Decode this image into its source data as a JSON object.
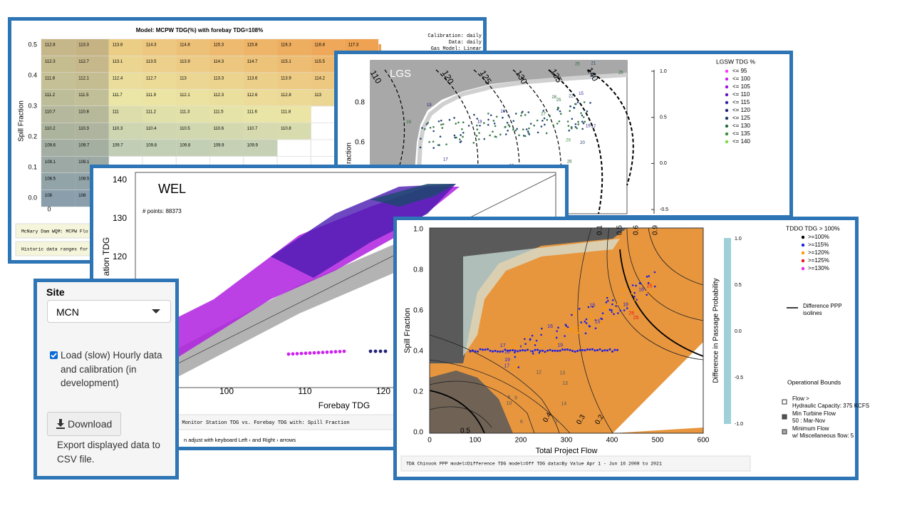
{
  "heatmap_panel": {
    "title": "Model: MCPW TDG(%) with forebay TDG=108%",
    "notes": [
      "Calibration: daily",
      "Data: daily",
      "Gas Model: Linear"
    ],
    "y_axis_label": "Spill Fraction",
    "yticks": [
      "0.5",
      "0.4",
      "0.3",
      "0.2",
      "0.1",
      "0.0"
    ],
    "xticks": [
      "0"
    ],
    "cells": [
      [
        112.8,
        113.3,
        113.8,
        114.3,
        114.8,
        115.3,
        115.8,
        116.3,
        116.8,
        117.3
      ],
      [
        112.3,
        112.7,
        113.1,
        113.5,
        113.9,
        114.3,
        114.7,
        115.1,
        115.5
      ],
      [
        111.8,
        112.1,
        112.4,
        112.7,
        113,
        113.3,
        113.6,
        113.9,
        114.2
      ],
      [
        111.2,
        111.5,
        111.7,
        111.9,
        112.1,
        112.3,
        112.6,
        112.8,
        113
      ],
      [
        110.7,
        110.8,
        111,
        111.2,
        111.3,
        111.5,
        111.6,
        111.8
      ],
      [
        110.2,
        110.3,
        110.3,
        110.4,
        110.5,
        110.6,
        110.7,
        110.8
      ],
      [
        109.6,
        109.7,
        109.7,
        109.8,
        109.8,
        109.9,
        109.9
      ],
      [
        109.1,
        109.1
      ],
      [
        108.5,
        108.5
      ],
      [
        108,
        108
      ]
    ],
    "footer": [
      "McNary Dam  WQM: MCPW  Flo",
      "Historic data ranges for cli"
    ]
  },
  "lgs_panel": {
    "label": "LGS",
    "contours": [
      "110",
      "120",
      "125",
      "130",
      "135",
      "140"
    ],
    "y_axis_label": "raction",
    "yticks": [
      "0.8",
      "0.6"
    ],
    "colorbar_ticks": [
      "1.0",
      "0.5",
      "0.0",
      "-0.5"
    ],
    "legend_title": "LGSW TDG %",
    "legend": [
      {
        "label": "<= 95",
        "color": "#ff33ff"
      },
      {
        "label": "<= 100",
        "color": "#cc22ee"
      },
      {
        "label": "<= 105",
        "color": "#9911dd"
      },
      {
        "label": "<= 110",
        "color": "#6611bb"
      },
      {
        "label": "<= 115",
        "color": "#3322aa"
      },
      {
        "label": "<= 120",
        "color": "#222277"
      },
      {
        "label": "<= 125",
        "color": "#1c3c66"
      },
      {
        "label": "<= 130",
        "color": "#2a6a3a"
      },
      {
        "label": "<= 135",
        "color": "#3c8c3c"
      },
      {
        "label": "<= 140",
        "color": "#77dd44"
      }
    ],
    "point_labels": [
      {
        "label": "18",
        "color": "#222277"
      },
      {
        "label": "17",
        "color": "#222277"
      },
      {
        "label": "19",
        "color": "#222277"
      },
      {
        "label": "20",
        "color": "#1c3c66"
      },
      {
        "label": "21",
        "color": "#1c3c66"
      },
      {
        "label": "22",
        "color": "#1c3c66"
      },
      {
        "label": "24",
        "color": "#1c3c66"
      },
      {
        "label": "25",
        "color": "#2a6a3a"
      },
      {
        "label": "26",
        "color": "#2a6a3a"
      },
      {
        "label": "27",
        "color": "#2a6a3a"
      },
      {
        "label": "28",
        "color": "#2a6a3a"
      },
      {
        "label": "29",
        "color": "#3c8c3c"
      },
      {
        "label": "31",
        "color": "#3c8c3c"
      },
      {
        "label": "15",
        "color": "#3322aa"
      },
      {
        "label": "16",
        "color": "#3322aa"
      },
      {
        "label": "23",
        "color": "#1c3c66"
      },
      {
        "label": "17",
        "color": "#222277"
      },
      {
        "label": "18",
        "color": "#222277"
      },
      {
        "label": "20",
        "color": "#1c3c66"
      },
      {
        "label": "26",
        "color": "#2a6a3a"
      },
      {
        "label": "28",
        "color": "#2a6a3a"
      },
      {
        "label": "25",
        "color": "#2a6a3a"
      },
      {
        "label": "21",
        "color": "#1c3c66"
      },
      {
        "label": "19",
        "color": "#222277"
      }
    ]
  },
  "wel_panel": {
    "label": "WEL",
    "points_note": "# points: 88373",
    "y_axis_label": "ation TDG",
    "yticks": [
      "140",
      "130",
      "120"
    ],
    "xticks": [
      "100",
      "110",
      "120"
    ],
    "x_axis_label": "Forebay TDG",
    "caption": "2  Monitor Station TDG vs. Forebay TDG with: Spill Fraction",
    "hint": "n adjust with keyboard Left ‹ and Right › arrows"
  },
  "controls_panel": {
    "site_label": "Site",
    "site_value": "MCN",
    "checkbox_label": "Load (slow) Hourly data and calibration (in development)",
    "download_button": "Download",
    "export_note": "Export displayed data to CSV file."
  },
  "chinook_panel": {
    "y_axis_label": "Spill Fraction",
    "x_axis_label": "Total Project Flow",
    "yticks": [
      "1.0",
      "0.8",
      "0.6",
      "0.4",
      "0.2",
      "0.0"
    ],
    "xticks": [
      "0",
      "100",
      "200",
      "300",
      "400",
      "500",
      "600"
    ],
    "contours": [
      "0.1",
      "0.5",
      "0.6",
      "0.9",
      "0.4",
      "0.3",
      "0.2",
      "0.5"
    ],
    "colorbar_label": "Difference in Passage Probability",
    "colorbar_ticks": [
      "1.0",
      "0.5",
      "0.0",
      "-0.5",
      "-1.0"
    ],
    "legend_title": "TDDO TDG > 100%",
    "legend": [
      {
        "label": ">=100%",
        "color": "#000000"
      },
      {
        "label": ">=115%",
        "color": "#1f1fe0"
      },
      {
        "label": ">=120%",
        "color": "#ff9900"
      },
      {
        "label": ">=125%",
        "color": "#ee1111"
      },
      {
        "label": ">=130%",
        "color": "#ee22ee"
      }
    ],
    "isoline_legend": "Difference PPP isolines",
    "bounds_title": "Operational Bounds",
    "bounds": [
      "Flow > Hydraulic Capacity: 375 KCFS",
      "Min Turbine Flow 50 : Mar-Nov",
      "Minimum Flow w/ Miscellaneous flow: 5"
    ],
    "caption": "TDA Chinook   PPP model=Difference   TDG model=Off   TDG data=By Value   Apr 1 - Jun 16   2008 to 2021",
    "point_labels": [
      {
        "label": "21",
        "color": "#ff9900"
      },
      {
        "label": "20",
        "color": "#ff9900"
      },
      {
        "label": "22",
        "color": "#ff9900"
      },
      {
        "label": "23",
        "color": "#ff9900"
      },
      {
        "label": "21",
        "color": "#ff9900"
      },
      {
        "label": "24",
        "color": "#ff9900"
      },
      {
        "label": "22",
        "color": "#ff9900"
      },
      {
        "label": "20",
        "color": "#ff9900"
      },
      {
        "label": "19",
        "color": "#1f1fe0"
      },
      {
        "label": "18",
        "color": "#1f1fe0"
      },
      {
        "label": "17",
        "color": "#1f1fe0"
      },
      {
        "label": "16",
        "color": "#1f1fe0"
      },
      {
        "label": "15",
        "color": "#1f1fe0"
      },
      {
        "label": "19",
        "color": "#1f1fe0"
      },
      {
        "label": "17",
        "color": "#1f1fe0"
      },
      {
        "label": "18",
        "color": "#1f1fe0"
      },
      {
        "label": "16",
        "color": "#1f1fe0"
      },
      {
        "label": "15",
        "color": "#1f1fe0"
      },
      {
        "label": "25",
        "color": "#ee1111"
      },
      {
        "label": "26",
        "color": "#ee1111"
      },
      {
        "label": "25",
        "color": "#ee1111"
      },
      {
        "label": "13",
        "color": "#555555"
      },
      {
        "label": "12",
        "color": "#555555"
      },
      {
        "label": "14",
        "color": "#555555"
      },
      {
        "label": "10",
        "color": "#555555"
      },
      {
        "label": "9",
        "color": "#555555"
      },
      {
        "label": "6",
        "color": "#555555"
      },
      {
        "label": "3",
        "color": "#555555"
      },
      {
        "label": "13",
        "color": "#555555"
      },
      {
        "label": "8",
        "color": "#555555"
      }
    ]
  }
}
